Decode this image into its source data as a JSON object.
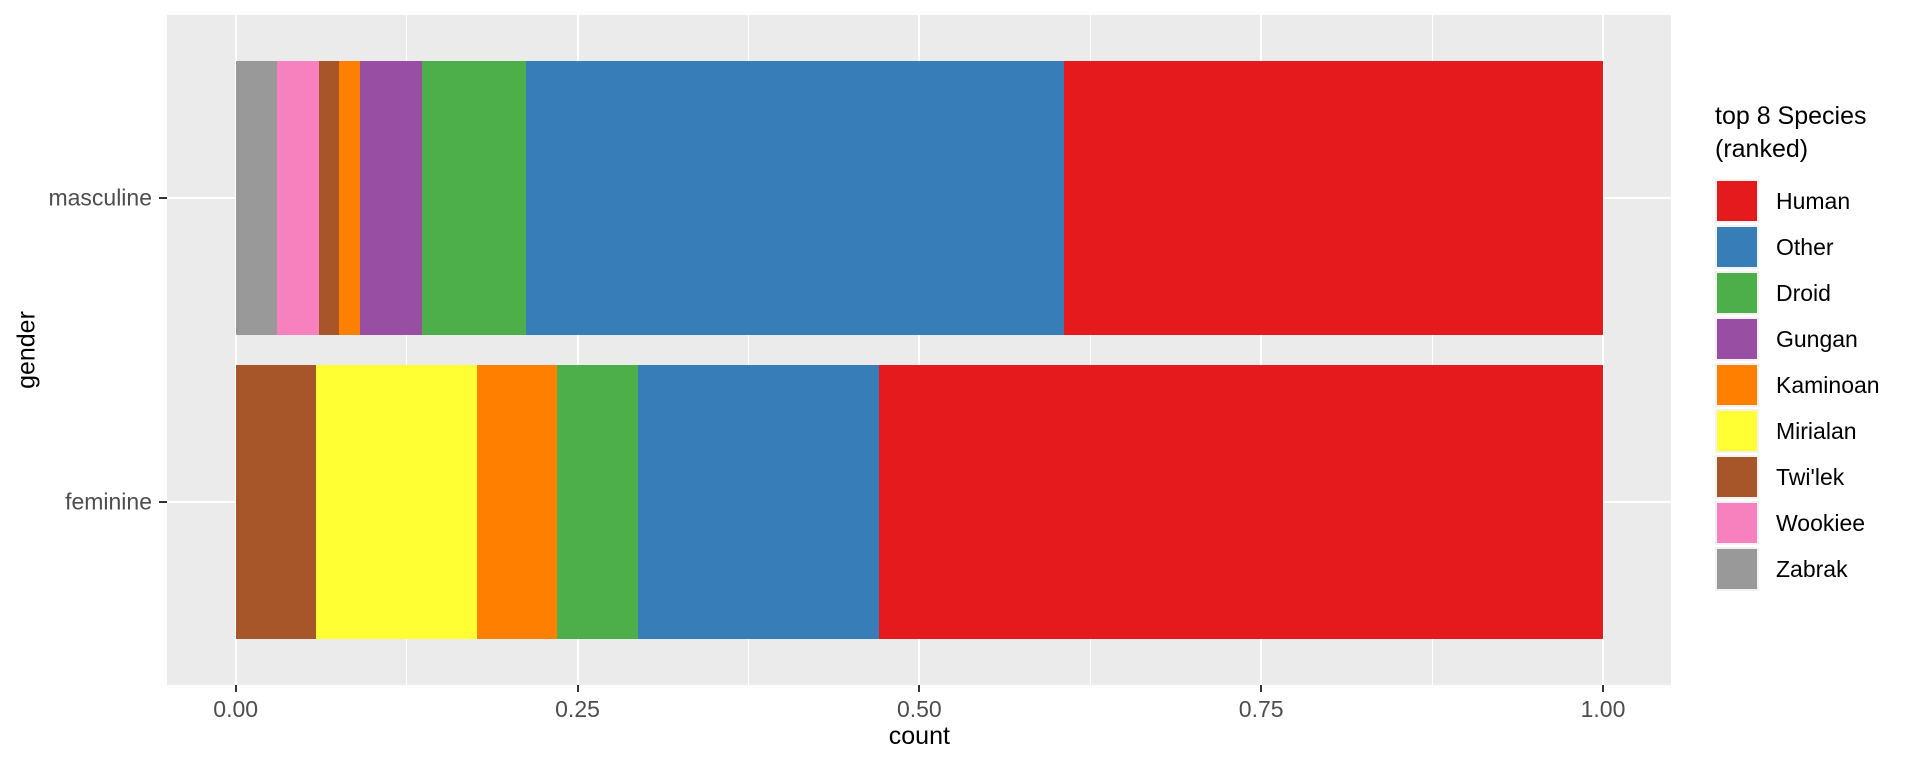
{
  "colors": {
    "panel_background": "#EBEBEB",
    "grid": "#FFFFFF",
    "axis_text": "#4D4D4D",
    "axis_title": "#000000",
    "tick_mark": "#333333",
    "legend_key_background": "#F2F2F2"
  },
  "chart_data": {
    "type": "bar",
    "orientation": "horizontal",
    "stack_mode": "fill",
    "xlabel": "count",
    "ylabel": "gender",
    "categories": [
      "masculine",
      "feminine"
    ],
    "x_ticks": [
      0.0,
      0.25,
      0.5,
      0.75,
      1.0
    ],
    "x_tick_labels": [
      "0.00",
      "0.25",
      "0.50",
      "0.75",
      "1.00"
    ],
    "xlim": [
      -0.05,
      1.05
    ],
    "grid": {
      "major": true,
      "minor": true
    },
    "legend": {
      "position": "right",
      "title_lines": [
        "top 8 Species",
        "(ranked)"
      ]
    },
    "series": [
      {
        "name": "Human",
        "color": "#E41A1C",
        "counts": {
          "masculine": 26,
          "feminine": 9
        }
      },
      {
        "name": "Other",
        "color": "#377EB8",
        "counts": {
          "masculine": 26,
          "feminine": 3
        }
      },
      {
        "name": "Droid",
        "color": "#4DAF4A",
        "counts": {
          "masculine": 5,
          "feminine": 1
        }
      },
      {
        "name": "Gungan",
        "color": "#984EA3",
        "counts": {
          "masculine": 3,
          "feminine": 0
        }
      },
      {
        "name": "Kaminoan",
        "color": "#FF7F00",
        "counts": {
          "masculine": 1,
          "feminine": 1
        }
      },
      {
        "name": "Mirialan",
        "color": "#FFFF33",
        "counts": {
          "masculine": 0,
          "feminine": 2
        }
      },
      {
        "name": "Twi'lek",
        "color": "#A65628",
        "counts": {
          "masculine": 1,
          "feminine": 1
        }
      },
      {
        "name": "Wookiee",
        "color": "#F781BF",
        "counts": {
          "masculine": 2,
          "feminine": 0
        }
      },
      {
        "name": "Zabrak",
        "color": "#999999",
        "counts": {
          "masculine": 2,
          "feminine": 0
        }
      }
    ],
    "category_totals": {
      "masculine": 66,
      "feminine": 17
    }
  }
}
